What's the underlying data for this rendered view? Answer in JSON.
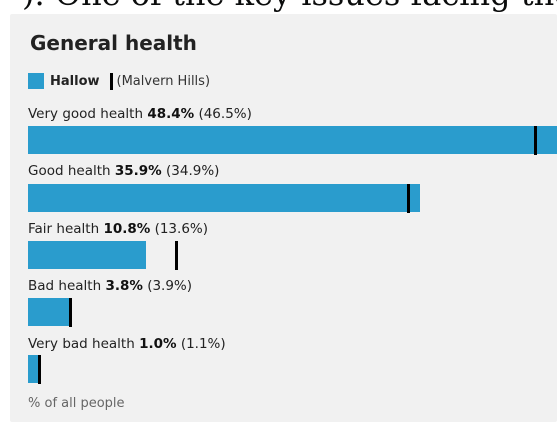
{
  "page": {
    "header_fragment": "). One of the key issues facing the"
  },
  "chart_data": {
    "type": "bar",
    "orientation": "horizontal",
    "title": "General health",
    "legend": {
      "area": "Hallow",
      "comparison": "(Malvern Hills)"
    },
    "categories": [
      "Very good health",
      "Good health",
      "Fair health",
      "Bad health",
      "Very bad health"
    ],
    "series": [
      {
        "name": "Hallow",
        "values": [
          48.4,
          35.9,
          10.8,
          3.8,
          1.0
        ]
      },
      {
        "name": "(Malvern Hills)",
        "values": [
          46.5,
          34.9,
          13.6,
          3.9,
          1.1
        ]
      }
    ],
    "value_labels": [
      "48.4%",
      "35.9%",
      "10.8%",
      "3.8%",
      "1.0%"
    ],
    "comparison_labels": [
      "(46.5%)",
      "(34.9%)",
      "(13.6%)",
      "(3.9%)",
      "(1.1%)"
    ],
    "xlim": [
      0,
      48.4
    ],
    "footer": "% of all people",
    "colors": {
      "bar": "#2a9ccd",
      "marker": "#000000",
      "background": "#f1f1f1"
    }
  }
}
